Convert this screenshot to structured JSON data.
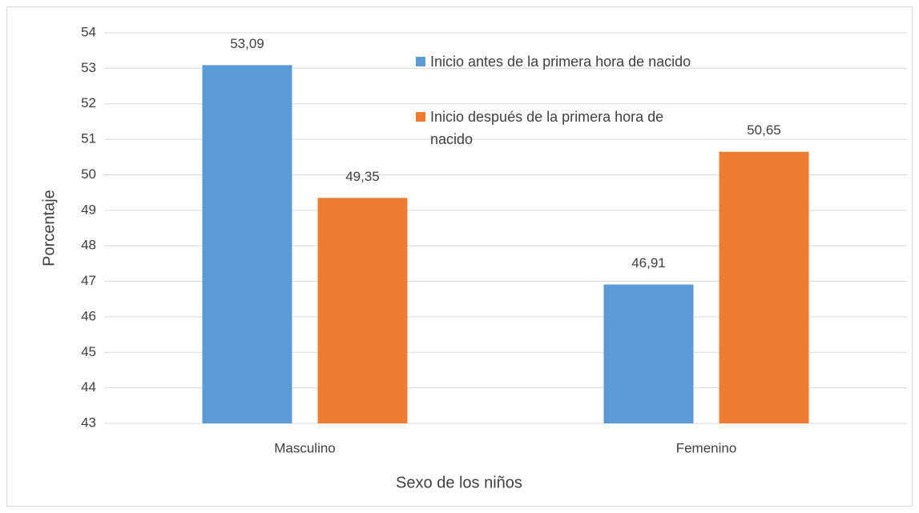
{
  "chart_data": {
    "type": "bar",
    "categories": [
      "Masculino",
      "Femenino"
    ],
    "series": [
      {
        "name": "Inicio antes de la primera hora de nacido",
        "color": "#5b9bd5",
        "values": [
          53.09,
          46.91
        ],
        "value_labels": [
          "53,09",
          "46,91"
        ]
      },
      {
        "name": "Inicio después de la primera hora de nacido",
        "color": "#ed7d31",
        "values": [
          49.35,
          50.65
        ],
        "value_labels": [
          "49,35",
          "50,65"
        ]
      }
    ],
    "xlabel": "Sexo de los niños",
    "ylabel": "Porcentaje",
    "ylim": [
      43,
      54
    ],
    "yticks": [
      43,
      44,
      45,
      46,
      47,
      48,
      49,
      50,
      51,
      52,
      53,
      54
    ],
    "grid": true
  }
}
